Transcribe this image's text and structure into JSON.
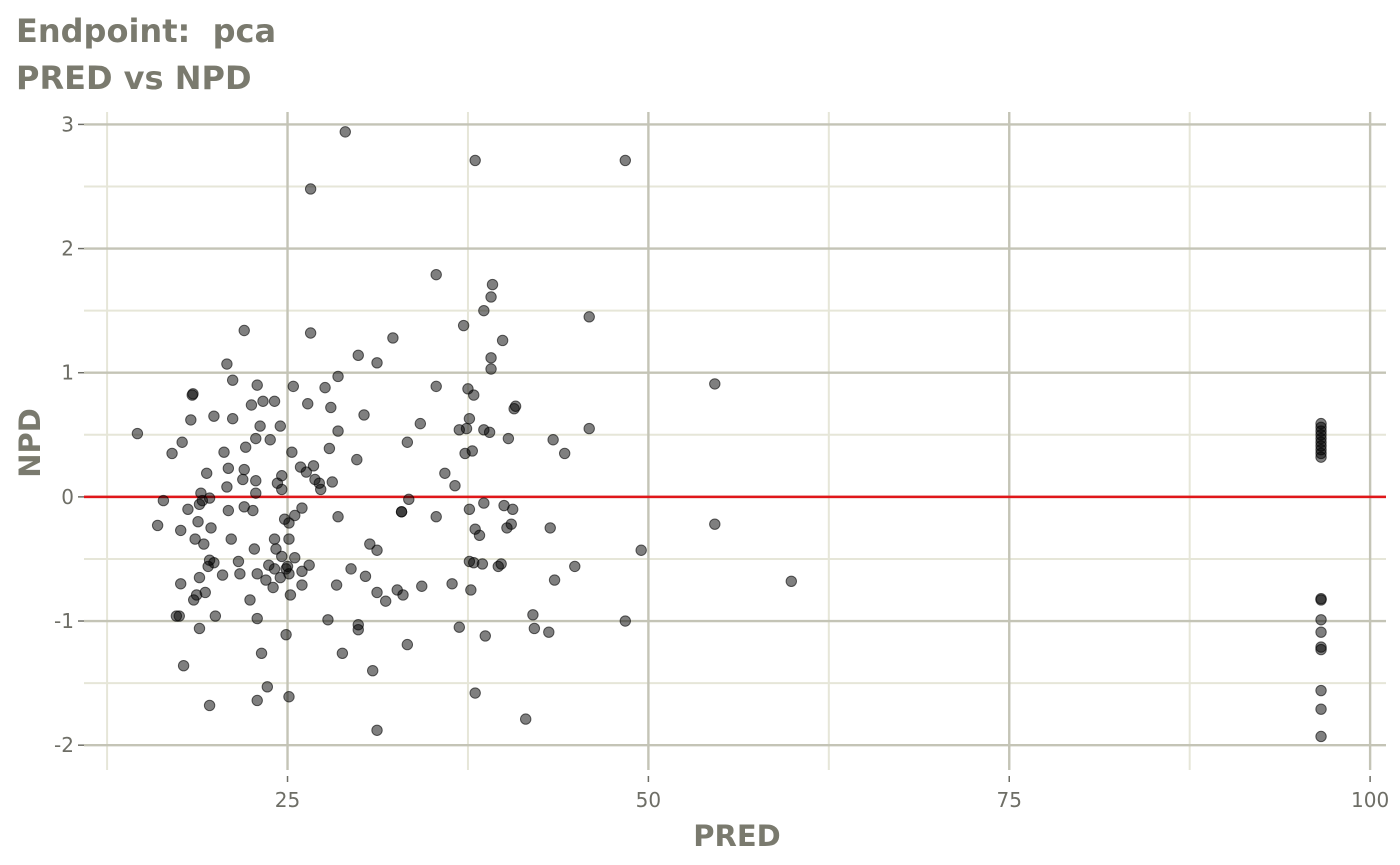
{
  "title": "Endpoint:  pca",
  "subtitle": "PRED vs NPD",
  "colors": {
    "title": "#7a7a6e",
    "major_grid": "#c4c4b6",
    "minor_grid": "#e6e6d8",
    "points": "#000000",
    "reference_line": "#e0171a"
  },
  "chart_data": {
    "type": "scatter",
    "title": "Endpoint:  pca",
    "subtitle": "PRED vs NPD",
    "xlabel": "PRED",
    "ylabel": "NPD",
    "xlim": [
      10.9,
      101.1
    ],
    "ylim": [
      -2.2,
      3.1
    ],
    "x_ticks": [
      25,
      50,
      75,
      100
    ],
    "x_tick_labels": [
      "25",
      "50",
      "75",
      "100"
    ],
    "y_ticks": [
      -2,
      -1,
      0,
      1,
      2,
      3
    ],
    "y_tick_labels": [
      "-2",
      "-1",
      "0",
      "1",
      "2",
      "3"
    ],
    "grid": true,
    "reference_line": {
      "y": 0,
      "color": "#e0171a"
    },
    "points": [
      [
        14.6,
        0.51
      ],
      [
        16.0,
        -0.23
      ],
      [
        16.4,
        -0.03
      ],
      [
        17.0,
        0.35
      ],
      [
        17.3,
        -0.96
      ],
      [
        17.5,
        -0.96
      ],
      [
        17.6,
        -0.7
      ],
      [
        17.6,
        -0.27
      ],
      [
        17.7,
        0.44
      ],
      [
        17.8,
        -1.36
      ],
      [
        18.1,
        -0.1
      ],
      [
        18.3,
        0.62
      ],
      [
        18.4,
        0.82
      ],
      [
        18.45,
        0.83
      ],
      [
        18.5,
        -0.83
      ],
      [
        18.6,
        -0.34
      ],
      [
        18.7,
        -0.79
      ],
      [
        18.8,
        -0.2
      ],
      [
        18.9,
        -0.65
      ],
      [
        18.9,
        -0.06
      ],
      [
        18.9,
        -1.06
      ],
      [
        19.0,
        0.03
      ],
      [
        19.1,
        -0.03
      ],
      [
        19.2,
        -0.38
      ],
      [
        19.3,
        -0.77
      ],
      [
        19.4,
        0.19
      ],
      [
        19.5,
        -0.56
      ],
      [
        19.6,
        -0.51
      ],
      [
        19.6,
        -0.01
      ],
      [
        19.6,
        -1.68
      ],
      [
        19.7,
        -0.25
      ],
      [
        19.9,
        0.65
      ],
      [
        19.9,
        -0.53
      ],
      [
        20.0,
        -0.96
      ],
      [
        20.5,
        -0.63
      ],
      [
        20.6,
        0.36
      ],
      [
        20.8,
        1.07
      ],
      [
        20.8,
        0.08
      ],
      [
        20.9,
        -0.11
      ],
      [
        20.9,
        0.23
      ],
      [
        21.1,
        -0.34
      ],
      [
        21.2,
        0.94
      ],
      [
        21.2,
        0.63
      ],
      [
        21.6,
        -0.52
      ],
      [
        21.7,
        -0.62
      ],
      [
        21.9,
        0.14
      ],
      [
        22.0,
        0.22
      ],
      [
        22.0,
        -0.08
      ],
      [
        22.0,
        1.34
      ],
      [
        22.1,
        0.4
      ],
      [
        22.4,
        -0.83
      ],
      [
        22.5,
        0.74
      ],
      [
        22.6,
        -0.11
      ],
      [
        22.7,
        -0.42
      ],
      [
        22.8,
        0.47
      ],
      [
        22.8,
        0.03
      ],
      [
        22.8,
        0.13
      ],
      [
        22.9,
        0.9
      ],
      [
        22.9,
        -0.62
      ],
      [
        22.9,
        -0.98
      ],
      [
        22.9,
        -1.64
      ],
      [
        23.1,
        0.57
      ],
      [
        23.2,
        -1.26
      ],
      [
        23.3,
        0.77
      ],
      [
        23.5,
        -0.67
      ],
      [
        23.6,
        -1.53
      ],
      [
        23.7,
        -0.55
      ],
      [
        23.8,
        0.46
      ],
      [
        24.0,
        -0.73
      ],
      [
        24.1,
        -0.58
      ],
      [
        24.1,
        0.77
      ],
      [
        24.1,
        -0.34
      ],
      [
        24.2,
        -0.42
      ],
      [
        24.3,
        0.11
      ],
      [
        24.5,
        -0.65
      ],
      [
        24.5,
        0.57
      ],
      [
        24.6,
        -0.48
      ],
      [
        24.6,
        0.06
      ],
      [
        24.6,
        0.17
      ],
      [
        24.8,
        -0.18
      ],
      [
        24.9,
        -1.11
      ],
      [
        24.9,
        -0.58
      ],
      [
        25.0,
        -0.56
      ],
      [
        25.1,
        -0.62
      ],
      [
        25.1,
        -0.21
      ],
      [
        25.1,
        -1.61
      ],
      [
        25.1,
        -0.34
      ],
      [
        25.2,
        -0.79
      ],
      [
        25.3,
        0.36
      ],
      [
        25.4,
        0.89
      ],
      [
        25.5,
        -0.49
      ],
      [
        25.5,
        -0.15
      ],
      [
        25.9,
        0.24
      ],
      [
        26.0,
        -0.09
      ],
      [
        26.0,
        -0.6
      ],
      [
        26.0,
        -0.71
      ],
      [
        26.3,
        0.2
      ],
      [
        26.4,
        0.75
      ],
      [
        26.5,
        -0.55
      ],
      [
        26.6,
        2.48
      ],
      [
        26.6,
        1.32
      ],
      [
        26.8,
        0.25
      ],
      [
        26.9,
        0.14
      ],
      [
        27.2,
        0.11
      ],
      [
        27.3,
        0.06
      ],
      [
        27.6,
        0.88
      ],
      [
        27.8,
        -0.99
      ],
      [
        27.9,
        0.39
      ],
      [
        28.0,
        0.72
      ],
      [
        28.1,
        0.12
      ],
      [
        28.4,
        -0.71
      ],
      [
        28.5,
        0.97
      ],
      [
        28.5,
        -0.16
      ],
      [
        28.5,
        0.53
      ],
      [
        28.8,
        -1.26
      ],
      [
        29.0,
        2.94
      ],
      [
        29.4,
        -0.58
      ],
      [
        29.8,
        0.3
      ],
      [
        29.9,
        -1.03
      ],
      [
        29.9,
        -1.07
      ],
      [
        29.9,
        1.14
      ],
      [
        30.3,
        0.66
      ],
      [
        30.4,
        -0.64
      ],
      [
        30.7,
        -0.38
      ],
      [
        30.9,
        -1.4
      ],
      [
        31.2,
        -0.43
      ],
      [
        31.2,
        1.08
      ],
      [
        31.2,
        -0.77
      ],
      [
        31.2,
        -1.88
      ],
      [
        31.8,
        -0.84
      ],
      [
        32.3,
        1.28
      ],
      [
        32.6,
        -0.75
      ],
      [
        32.9,
        -0.12
      ],
      [
        32.9,
        -0.12
      ],
      [
        33.0,
        -0.79
      ],
      [
        33.3,
        0.44
      ],
      [
        33.3,
        -1.19
      ],
      [
        33.4,
        -0.02
      ],
      [
        34.2,
        0.59
      ],
      [
        34.3,
        -0.72
      ],
      [
        35.3,
        0.89
      ],
      [
        35.3,
        -0.16
      ],
      [
        35.3,
        1.79
      ],
      [
        35.9,
        0.19
      ],
      [
        36.4,
        -0.7
      ],
      [
        36.6,
        0.09
      ],
      [
        36.9,
        0.54
      ],
      [
        36.9,
        -1.05
      ],
      [
        37.2,
        1.38
      ],
      [
        37.3,
        0.35
      ],
      [
        37.4,
        0.55
      ],
      [
        37.5,
        0.87
      ],
      [
        37.6,
        -0.1
      ],
      [
        37.6,
        0.63
      ],
      [
        37.6,
        -0.52
      ],
      [
        37.7,
        -0.75
      ],
      [
        37.8,
        0.37
      ],
      [
        37.9,
        -0.53
      ],
      [
        37.9,
        0.82
      ],
      [
        38.0,
        -0.26
      ],
      [
        38.0,
        -1.58
      ],
      [
        38.0,
        2.71
      ],
      [
        38.3,
        -0.31
      ],
      [
        38.5,
        -0.54
      ],
      [
        38.6,
        -0.05
      ],
      [
        38.6,
        1.5
      ],
      [
        38.6,
        0.54
      ],
      [
        38.7,
        -1.12
      ],
      [
        39.0,
        0.52
      ],
      [
        39.1,
        1.03
      ],
      [
        39.1,
        1.12
      ],
      [
        39.1,
        1.61
      ],
      [
        39.2,
        1.71
      ],
      [
        39.6,
        -0.56
      ],
      [
        39.8,
        -0.54
      ],
      [
        39.9,
        1.26
      ],
      [
        40.0,
        -0.07
      ],
      [
        40.2,
        -0.25
      ],
      [
        40.3,
        0.47
      ],
      [
        40.5,
        -0.22
      ],
      [
        40.6,
        -0.1
      ],
      [
        40.7,
        0.71
      ],
      [
        40.8,
        0.73
      ],
      [
        41.5,
        -1.79
      ],
      [
        42.0,
        -0.95
      ],
      [
        42.1,
        -1.06
      ],
      [
        43.1,
        -1.09
      ],
      [
        43.2,
        -0.25
      ],
      [
        43.4,
        0.46
      ],
      [
        43.5,
        -0.67
      ],
      [
        44.2,
        0.35
      ],
      [
        44.9,
        -0.56
      ],
      [
        45.9,
        1.45
      ],
      [
        45.9,
        0.55
      ],
      [
        48.4,
        -1.0
      ],
      [
        48.4,
        2.71
      ],
      [
        49.5,
        -0.43
      ],
      [
        54.6,
        -0.22
      ],
      [
        54.6,
        0.91
      ],
      [
        59.9,
        -0.68
      ],
      [
        96.6,
        0.59
      ],
      [
        96.6,
        0.56
      ],
      [
        96.6,
        0.53
      ],
      [
        96.6,
        0.5
      ],
      [
        96.6,
        0.47
      ],
      [
        96.6,
        0.44
      ],
      [
        96.6,
        0.41
      ],
      [
        96.6,
        0.38
      ],
      [
        96.6,
        0.35
      ],
      [
        96.6,
        0.32
      ],
      [
        96.6,
        -0.82
      ],
      [
        96.6,
        -0.83
      ],
      [
        96.6,
        -0.99
      ],
      [
        96.6,
        -1.09
      ],
      [
        96.6,
        -1.21
      ],
      [
        96.6,
        -1.23
      ],
      [
        96.6,
        -1.56
      ],
      [
        96.6,
        -1.71
      ],
      [
        96.6,
        -1.93
      ]
    ]
  }
}
